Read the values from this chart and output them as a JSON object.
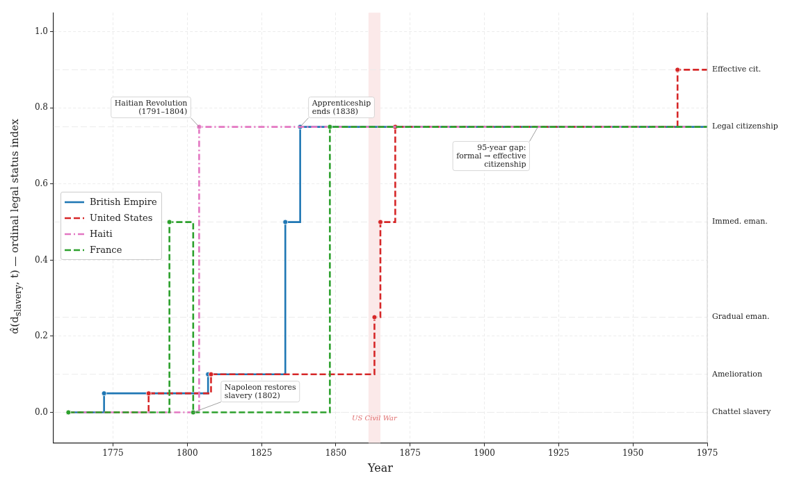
{
  "chart_data": {
    "type": "step",
    "xlabel": "Year",
    "ylabel": "α̂(d$_{slavery}$, t) — ordinal legal status index",
    "xlim": [
      1755,
      1975
    ],
    "xticks": [
      1775,
      1800,
      1825,
      1850,
      1875,
      1900,
      1925,
      1950,
      1975
    ],
    "ylim": [
      -0.08,
      1.05
    ],
    "yticks": [
      {
        "value": 0,
        "label": "0.0"
      },
      {
        "value": 0.2,
        "label": "0.2"
      },
      {
        "value": 0.4,
        "label": "0.4"
      },
      {
        "value": 0.6,
        "label": "0.6"
      },
      {
        "value": 0.8,
        "label": "0.8"
      },
      {
        "value": 1,
        "label": "1.0"
      }
    ],
    "grid": true,
    "legend": "left",
    "marker": "circle",
    "series": [
      {
        "name": "British Empire",
        "color": "#1f77b4",
        "line_style": "solid",
        "x": [
          1760,
          1772,
          1807,
          1833,
          1838,
          1975
        ],
        "values": [
          0,
          0.05,
          0.1,
          0.5,
          0.75,
          0.75
        ]
      },
      {
        "name": "United States",
        "color": "#d62728",
        "line_style": "dashed",
        "x": [
          1760,
          1787,
          1808,
          1863,
          1865,
          1870,
          1965,
          1975
        ],
        "values": [
          0,
          0.05,
          0.1,
          0.25,
          0.5,
          0.75,
          0.9,
          0.9
        ]
      },
      {
        "name": "Haiti",
        "color": "#e377c2",
        "line_style": "dashdot",
        "x": [
          1760,
          1804,
          1975
        ],
        "values": [
          0,
          0.75,
          0.75
        ]
      },
      {
        "name": "France",
        "color": "#2ca02c",
        "line_style": "dashed",
        "x": [
          1760,
          1794,
          1802,
          1848,
          1975
        ],
        "values": [
          0,
          0.5,
          0,
          0.75,
          0.75
        ]
      }
    ],
    "bands": [
      {
        "axis": "x",
        "from": 1861,
        "to": 1865,
        "label": "US Civil War",
        "color": "#fbe9e9"
      }
    ],
    "annotations": [
      {
        "text": "Haitian Revolution\n(1791–1804)",
        "x": 1804,
        "y": 0.75
      },
      {
        "text": "Apprenticeship\nends (1838)",
        "x": 1838,
        "y": 0.75
      },
      {
        "text": "Napoleon restores\nslavery (1802)",
        "x": 1802,
        "y": 0
      },
      {
        "text": "95-year gap:\nformal → effective\ncitizenship",
        "x": 1918,
        "y": 0.75
      }
    ],
    "ref_lines": [
      {
        "axis": "y",
        "value": 0,
        "label": "Chattel slavery",
        "color": "#ebebeb",
        "line_style": "dashed"
      },
      {
        "axis": "y",
        "value": 0.1,
        "label": "Amelioration",
        "color": "#ebebeb",
        "line_style": "dashed"
      },
      {
        "axis": "y",
        "value": 0.25,
        "label": "Gradual eman.",
        "color": "#ebebeb",
        "line_style": "dashed"
      },
      {
        "axis": "y",
        "value": 0.5,
        "label": "Immed. eman.",
        "color": "#ebebeb",
        "line_style": "dashed"
      },
      {
        "axis": "y",
        "value": 0.75,
        "label": "Legal citizenship",
        "color": "#ebebeb",
        "line_style": "dashed"
      },
      {
        "axis": "y",
        "value": 0.9,
        "label": "Effective cit.",
        "color": "#ebebeb",
        "line_style": "dashed"
      }
    ]
  }
}
